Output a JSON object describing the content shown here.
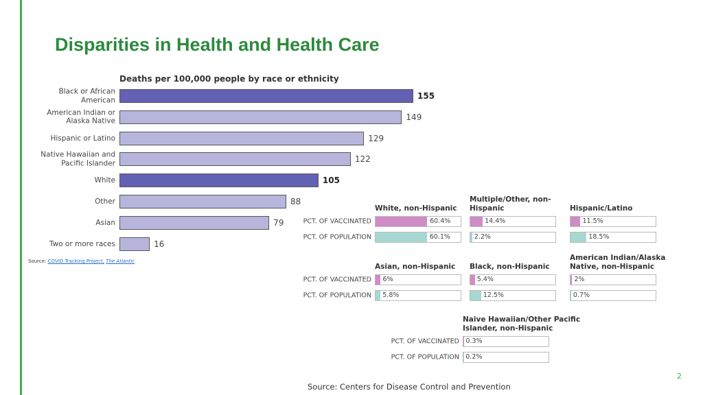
{
  "title": "Disparities in Health and Health Care",
  "page_number": "2",
  "chart_data": [
    {
      "type": "bar",
      "orientation": "horizontal",
      "title": "Deaths per 100,000 people by race or ethnicity",
      "categories": [
        "Black or African American",
        "American Indian or Alaska Native",
        "Hispanic or Latino",
        "Native Hawaiian and Pacific Islander",
        "White",
        "Other",
        "Asian",
        "Two or more races"
      ],
      "values": [
        155,
        149,
        129,
        122,
        105,
        88,
        79,
        16
      ],
      "colors": [
        "#6361b3",
        "#b7b5dc",
        "#b7b5dc",
        "#b7b5dc",
        "#6361b3",
        "#b7b5dc",
        "#b7b5dc",
        "#b7b5dc"
      ]
    },
    {
      "type": "panel-bars",
      "row_labels": [
        "PCT. OF VACCINATED",
        "PCT. OF POPULATION"
      ],
      "row_colors": [
        "#d08cc6",
        "#a6d8d1"
      ],
      "xlim": [
        0,
        100
      ],
      "groups": [
        {
          "name": "White, non-Hispanic",
          "values": [
            60.4,
            60.1
          ],
          "value_labels": [
            "60.4%",
            "60.1%"
          ]
        },
        {
          "name": "Multiple/Other, non-Hispanic",
          "values": [
            14.4,
            2.2
          ],
          "value_labels": [
            "14.4%",
            "2.2%"
          ]
        },
        {
          "name": "Hispanic/Latino",
          "values": [
            11.5,
            18.5
          ],
          "value_labels": [
            "11.5%",
            "18.5%"
          ]
        },
        {
          "name": "Asian, non-Hispanic",
          "values": [
            6,
            5.8
          ],
          "value_labels": [
            "6%",
            "5.8%"
          ]
        },
        {
          "name": "Black, non-Hispanic",
          "values": [
            5.4,
            12.5
          ],
          "value_labels": [
            "5.4%",
            "12.5%"
          ]
        },
        {
          "name": "American Indian/Alaska Native, non-Hispanic",
          "values": [
            2,
            0.7
          ],
          "value_labels": [
            "2%",
            "0.7%"
          ]
        },
        {
          "name": "Naive Hawaiian/Other Pacific Islander, non-Hispanic",
          "values": [
            0.3,
            0.2
          ],
          "value_labels": [
            "0.3%",
            "0.2%"
          ]
        }
      ],
      "source": "Source: Centers for Disease Control and Prevention"
    }
  ],
  "source": {
    "prefix": "Source:",
    "link": "COVID Tracking Project,",
    "italic": "The Atlantic"
  }
}
